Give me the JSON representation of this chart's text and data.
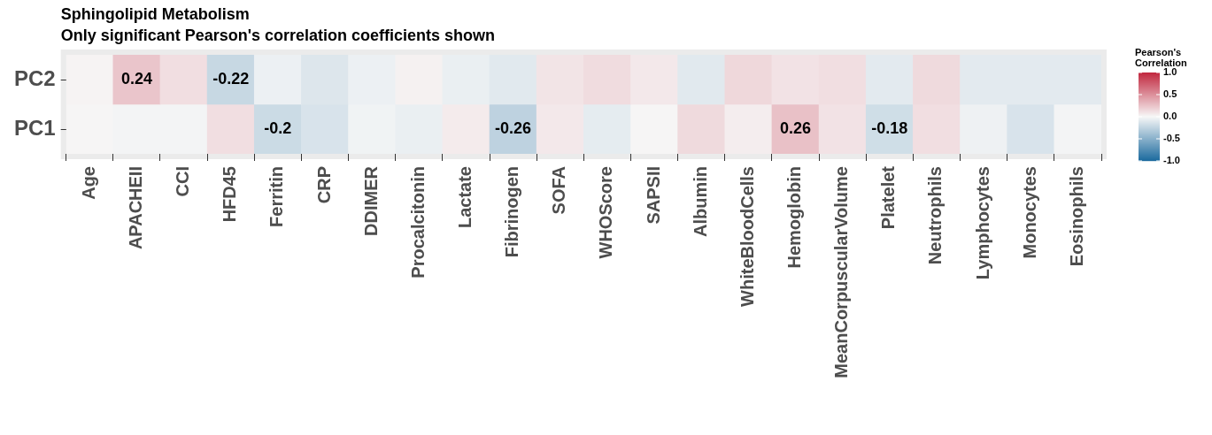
{
  "chart_data": {
    "type": "heatmap",
    "title": "Sphingolipid Metabolism",
    "subtitle": "Only significant Pearson's correlation coefficients shown",
    "clabel": "Pearson's Correlation",
    "categories": [
      "Age",
      "APACHEII",
      "CCI",
      "HFD45",
      "Ferritin",
      "CRP",
      "DDIMER",
      "Procalcitonin",
      "Lactate",
      "Fibrinogen",
      "SOFA",
      "WHOScore",
      "SAPSII",
      "Albumin",
      "WhiteBloodCells",
      "Hemoglobin",
      "MeanCorpuscularVolume",
      "Platelet",
      "Neutrophils",
      "Lymphocytes",
      "Monocytes",
      "Eosinophils"
    ],
    "y_categories": [
      "PC2",
      "PC1"
    ],
    "cells": [
      [
        0.02,
        0.24,
        0.12,
        -0.22,
        -0.05,
        -0.12,
        -0.05,
        0.03,
        -0.06,
        -0.1,
        0.09,
        0.13,
        0.07,
        -0.1,
        0.15,
        0.1,
        0.12,
        -0.09,
        0.14,
        -0.09,
        -0.09,
        -0.09
      ],
      [
        0.01,
        -0.02,
        -0.02,
        0.12,
        -0.2,
        -0.14,
        -0.03,
        -0.06,
        0.06,
        -0.26,
        0.07,
        -0.08,
        0.01,
        0.14,
        0.05,
        0.26,
        0.1,
        -0.18,
        0.12,
        -0.04,
        -0.14,
        -0.02
      ]
    ],
    "cell_labels": [
      [
        null,
        "0.24",
        null,
        "-0.22",
        null,
        null,
        null,
        null,
        null,
        null,
        null,
        null,
        null,
        null,
        null,
        null,
        null,
        null,
        null,
        null,
        null,
        null
      ],
      [
        null,
        null,
        null,
        null,
        "-0.2",
        null,
        null,
        null,
        null,
        "-0.26",
        null,
        null,
        null,
        null,
        null,
        "0.26",
        null,
        "-0.18",
        null,
        null,
        null,
        null
      ]
    ],
    "clim": [
      -1,
      1
    ],
    "cticks": [
      {
        "value": 1,
        "label": "1.0"
      },
      {
        "value": 0.5,
        "label": "0.5"
      },
      {
        "value": 0,
        "label": "0.0"
      },
      {
        "value": -0.5,
        "label": "-0.5"
      },
      {
        "value": -1,
        "label": "-1.0"
      }
    ]
  }
}
